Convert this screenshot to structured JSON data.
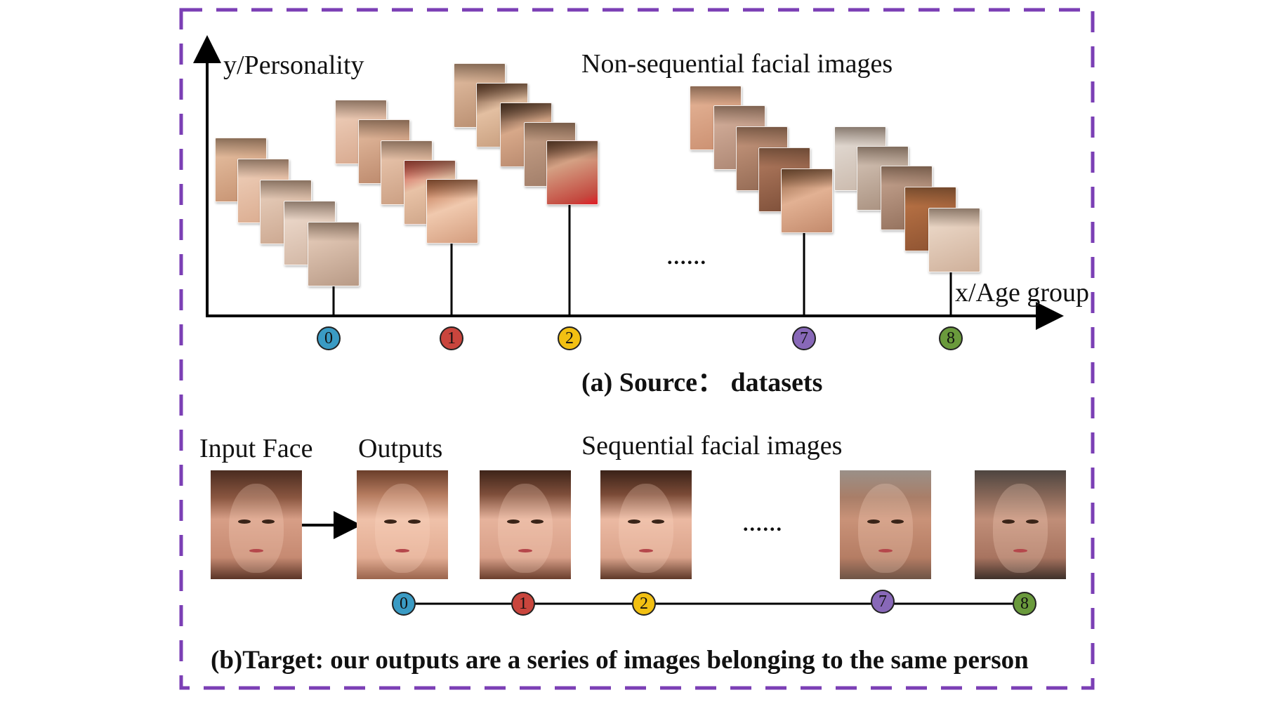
{
  "diagram": {
    "colors": {
      "frame": "#7b3fb5",
      "badge_0": "#3a9bc4",
      "badge_1": "#c9453d",
      "badge_2": "#f2c012",
      "badge_7": "#8868b8",
      "badge_8": "#6a9a3c"
    },
    "top": {
      "y_axis_label": "y/Personality",
      "x_axis_label": "x/Age group",
      "cluster_label": "Non-sequential facial images",
      "ellipsis": "......",
      "badges": [
        "0",
        "1",
        "2",
        "7",
        "8"
      ],
      "caption": "(a) Source：  datasets"
    },
    "bottom": {
      "input_label": "Input Face",
      "outputs_label": "Outputs",
      "sequence_label": "Sequential facial images",
      "ellipsis": "......",
      "badges": [
        "0",
        "1",
        "2",
        "7",
        "8"
      ],
      "caption": "(b)Target: our outputs are a series of images belonging to the same person"
    }
  }
}
